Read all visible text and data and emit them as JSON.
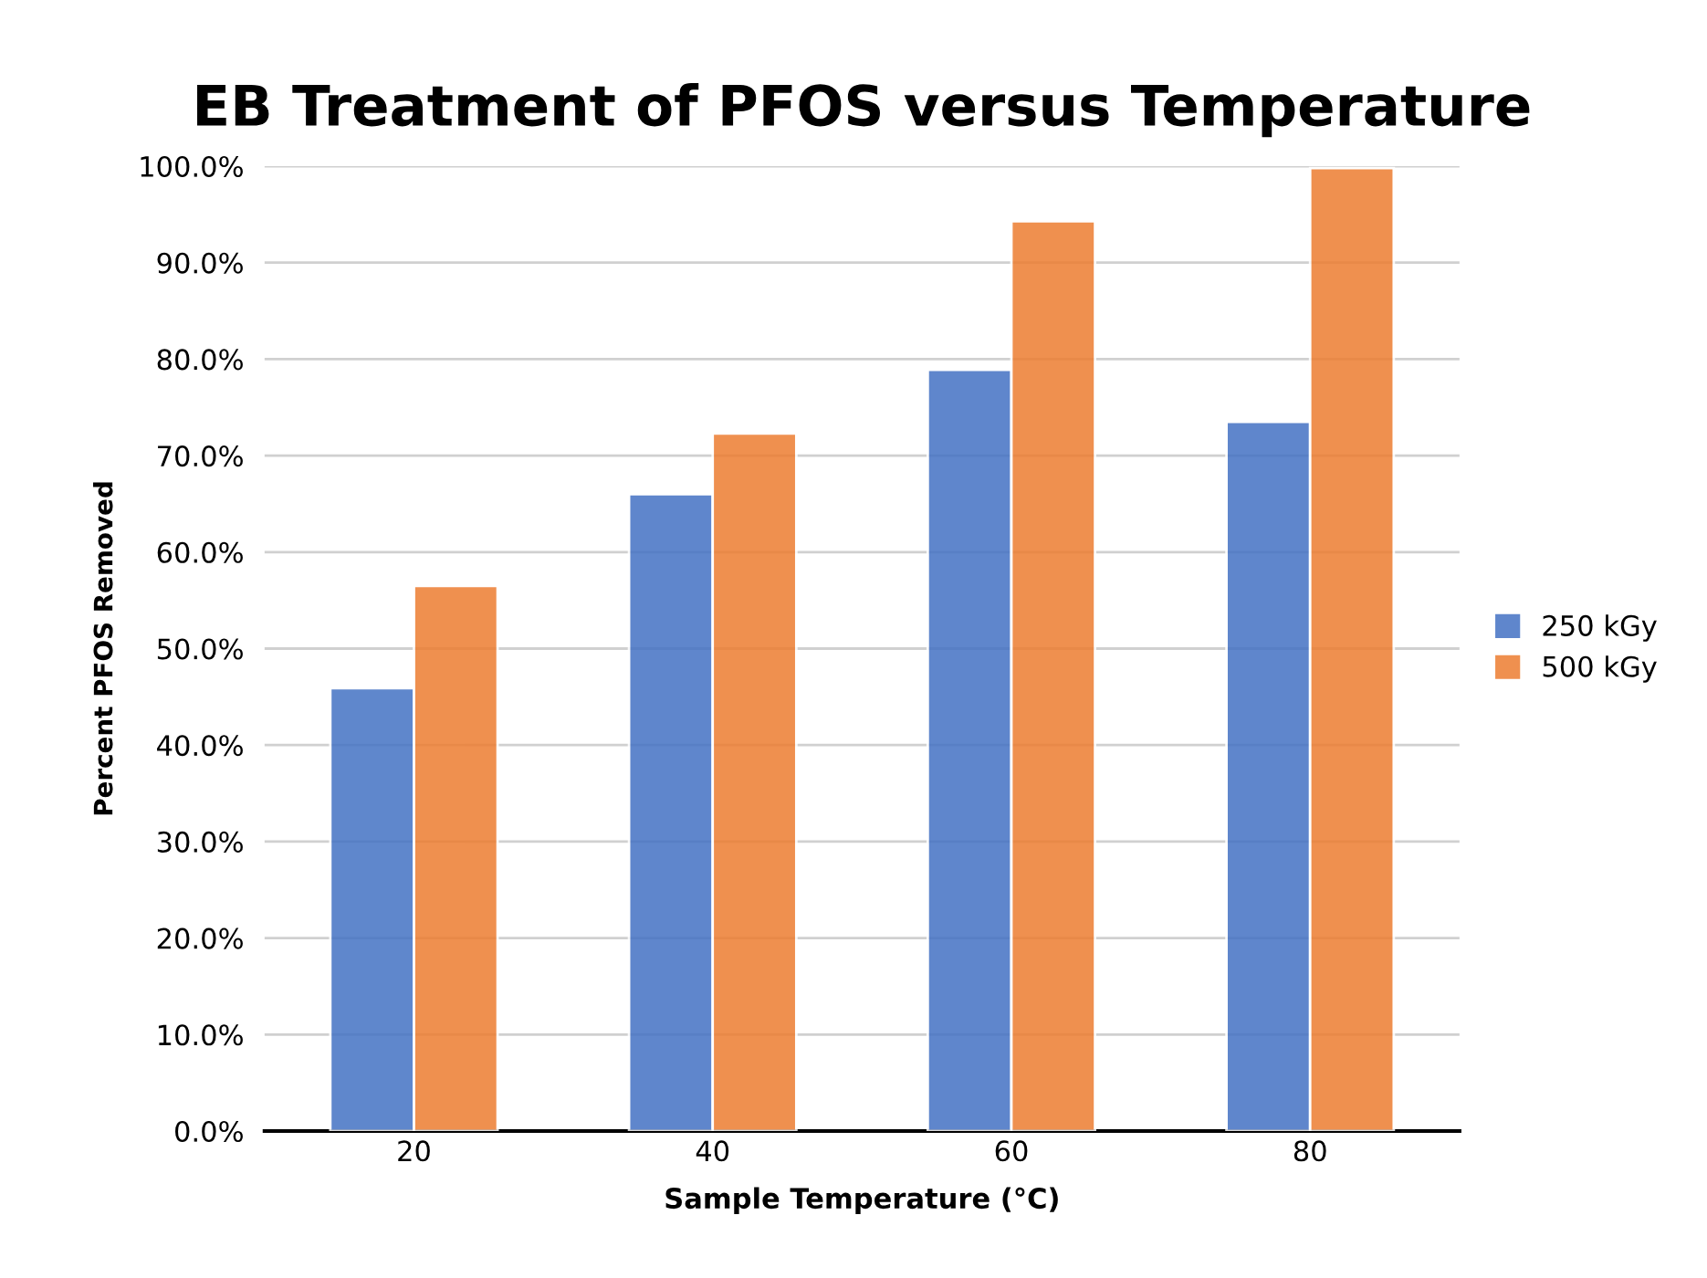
{
  "chart_data": {
    "type": "bar",
    "title": "EB Treatment of PFOS versus Temperature",
    "xlabel": "Sample Temperature (°C)",
    "ylabel": "Percent PFOS Removed",
    "categories": [
      "20",
      "40",
      "60",
      "80"
    ],
    "series": [
      {
        "name": "250 kGy",
        "color": "#4472c4",
        "values": [
          45.9,
          66.0,
          78.9,
          73.5
        ]
      },
      {
        "name": "500 kGy",
        "color": "#ed7d31",
        "values": [
          56.5,
          72.3,
          94.3,
          99.8
        ]
      }
    ],
    "ylim": [
      0,
      100
    ],
    "yticks": [
      {
        "value": 0,
        "label": "0.0%"
      },
      {
        "value": 10,
        "label": "10.0%"
      },
      {
        "value": 20,
        "label": "20.0%"
      },
      {
        "value": 30,
        "label": "30.0%"
      },
      {
        "value": 40,
        "label": "40.0%"
      },
      {
        "value": 50,
        "label": "50.0%"
      },
      {
        "value": 60,
        "label": "60.0%"
      },
      {
        "value": 70,
        "label": "70.0%"
      },
      {
        "value": 80,
        "label": "80.0%"
      },
      {
        "value": 90,
        "label": "90.0%"
      },
      {
        "value": 100,
        "label": "100.0%"
      }
    ],
    "grid": "y",
    "legend": "right"
  }
}
